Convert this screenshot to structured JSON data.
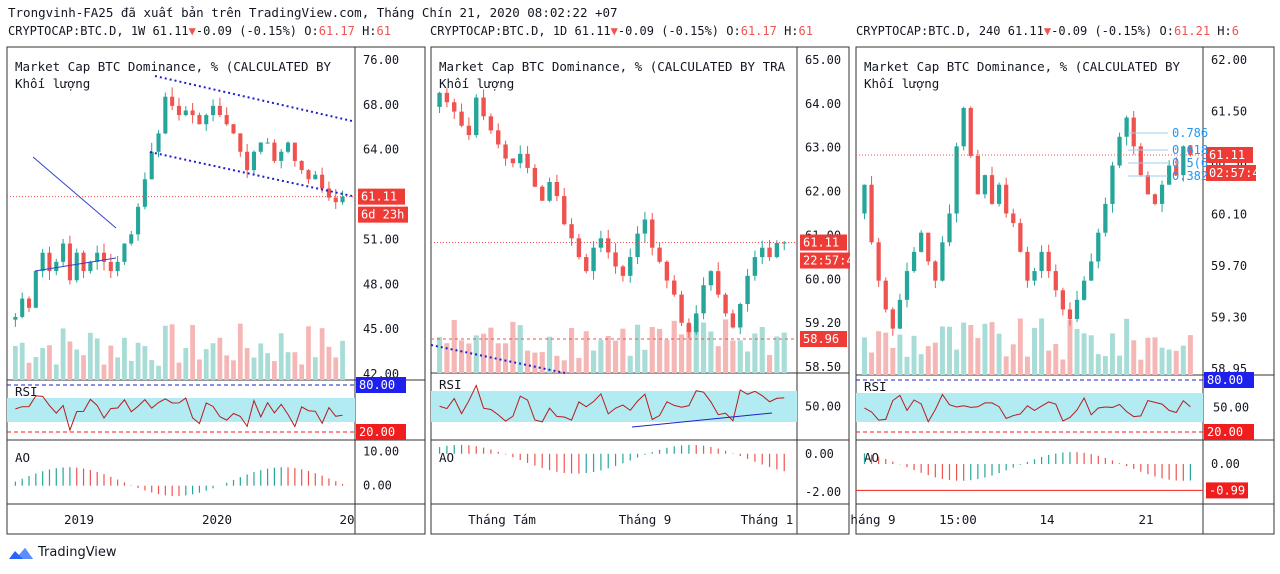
{
  "header": "Trongvinh-FA25 đã xuất bản trên TradingView.com, Tháng Chín 21, 2020 08:02:22 +07",
  "brand": "TradingView",
  "panels": [
    {
      "ticker": {
        "symbol": "CRYPTOCAP:BTC.D, 1W",
        "last": "61.11",
        "arrow": "▼",
        "change": "-0.09 (-0.15%)",
        "o_label": "O:",
        "o": "61.17",
        "h_label": "H:",
        "h": "61"
      },
      "title": "Market Cap BTC Dominance, % (CALCULATED BY",
      "volume_label": "Khối lượng",
      "price_ticks": [
        "76.00",
        "68.00",
        "64.00",
        "55.00",
        "51.00",
        "48.00",
        "45.00",
        "42.00"
      ],
      "price_tag": "61.11",
      "timer_tag": "6d 23h",
      "rsi_label": "RSI",
      "rsi_ticks": [
        "80.00",
        "20.00"
      ],
      "ao_label": "AO",
      "ao_ticks": [
        "10.00",
        "0.00"
      ],
      "x_ticks": [
        "2019",
        "2020",
        "20"
      ]
    },
    {
      "ticker": {
        "symbol": "CRYPTOCAP:BTC.D, 1D",
        "last": "61.11",
        "arrow": "▼",
        "change": "-0.09 (-0.15%)",
        "o_label": "O:",
        "o": "61.17",
        "h_label": "H:",
        "h": "61"
      },
      "title": "Market Cap BTC Dominance, % (CALCULATED BY TRA",
      "volume_label": "Khối lượng",
      "price_ticks": [
        "65.00",
        "64.00",
        "63.00",
        "62.00",
        "61.00",
        "60.00",
        "59.20",
        "58.50"
      ],
      "price_tag": "61.11",
      "timer_tag": "22:57:40",
      "level_tag": "58.96",
      "rsi_label": "RSI",
      "rsi_ticks": [
        "50.00"
      ],
      "ao_label": "AO",
      "ao_ticks": [
        "0.00",
        "-2.00"
      ],
      "x_ticks": [
        "Tháng Tám",
        "Tháng 9",
        "Tháng 1"
      ]
    },
    {
      "ticker": {
        "symbol": "CRYPTOCAP:BTC.D, 240",
        "last": "61.11",
        "arrow": "▼",
        "change": "-0.09 (-0.15%)",
        "o_label": "O:",
        "o": "61.21",
        "h_label": "H:",
        "h": "6"
      },
      "title": "Market Cap BTC Dominance, % (CALCULATED BY",
      "volume_label": "Khối lượng",
      "price_ticks": [
        "62.00",
        "61.50",
        "60.50",
        "60.10",
        "59.70",
        "59.30",
        "58.95"
      ],
      "fib_labels": [
        "0.786",
        "0.618",
        "0.5(6",
        "0.382"
      ],
      "price_tag": "61.11",
      "timer_tag": "02:57:40",
      "rsi_label": "RSI",
      "rsi_ticks": [
        "80.00",
        "50.00",
        "20.00"
      ],
      "ao_label": "AO",
      "ao_ticks": [
        "0.00"
      ],
      "ao_tag": "-0.99",
      "x_ticks": [
        "háng 9",
        "15:00",
        "14",
        "21"
      ]
    }
  ],
  "colors": {
    "up": "#26a69a",
    "down": "#ef5350",
    "rsi_band": "#b2ebf2",
    "rsi_line": "#b71c1c",
    "ao_up": "#26a69a",
    "ao_down": "#ef5350",
    "rsi_80": "#1e1ecf",
    "rsi_20": "#ef1d1d",
    "trend": "#2020cc"
  },
  "chart_data": [
    {
      "type": "candlestick",
      "timeframe": "1W",
      "ylim": [
        42,
        76
      ],
      "last": 61.11,
      "closes": [
        48,
        50,
        49,
        53,
        55,
        53,
        54,
        56,
        52,
        55,
        53,
        54,
        55,
        54,
        53,
        54,
        56,
        57,
        60,
        63,
        66,
        68,
        72,
        71,
        70,
        70.5,
        70,
        69,
        70,
        71,
        70,
        69,
        68,
        66,
        64,
        66,
        67,
        67,
        65,
        66,
        67,
        65,
        64,
        63,
        63.5,
        62,
        61,
        60.5,
        61.11
      ],
      "rsi_ylim": [
        20,
        80
      ],
      "ao_ylim": [
        -3,
        11
      ]
    },
    {
      "type": "candlestick",
      "timeframe": "1D",
      "ylim": [
        58.5,
        65
      ],
      "last": 61.11,
      "closes": [
        64.3,
        64.1,
        63.9,
        63.6,
        63.4,
        64.2,
        63.8,
        63.5,
        63.2,
        62.9,
        62.8,
        63.0,
        62.7,
        62.3,
        62.0,
        62.4,
        62.1,
        61.5,
        61.2,
        60.8,
        60.5,
        61.0,
        61.2,
        60.9,
        60.6,
        60.4,
        60.8,
        61.3,
        61.6,
        61.0,
        60.7,
        60.3,
        60.0,
        59.4,
        59.2,
        59.6,
        60.2,
        60.5,
        60.0,
        59.6,
        59.3,
        59.8,
        60.4,
        60.8,
        61.0,
        60.8,
        61.1,
        61.11
      ],
      "rsi_ylim": [
        30,
        70
      ],
      "ao_ylim": [
        -2.2,
        0.3
      ]
    },
    {
      "type": "candlestick",
      "timeframe": "240",
      "ylim": [
        58.9,
        62.1
      ],
      "last": 61.11,
      "closes": [
        60.8,
        60.2,
        59.8,
        59.5,
        59.3,
        59.6,
        59.9,
        60.1,
        60.3,
        60.0,
        59.8,
        60.2,
        60.5,
        61.2,
        61.6,
        61.1,
        60.7,
        60.9,
        60.6,
        60.8,
        60.5,
        60.4,
        60.1,
        59.8,
        59.9,
        60.1,
        59.9,
        59.7,
        59.5,
        59.4,
        59.6,
        59.8,
        60.0,
        60.3,
        60.6,
        61.0,
        61.3,
        61.5,
        61.2,
        60.9,
        60.7,
        60.6,
        60.8,
        61.0,
        60.9,
        61.2,
        61.11
      ],
      "fib": [
        0.786,
        0.618,
        0.5,
        0.382
      ],
      "rsi_ylim": [
        20,
        80
      ],
      "ao_ylim": [
        -1.2,
        0.6
      ],
      "ao_last": -0.99
    }
  ]
}
